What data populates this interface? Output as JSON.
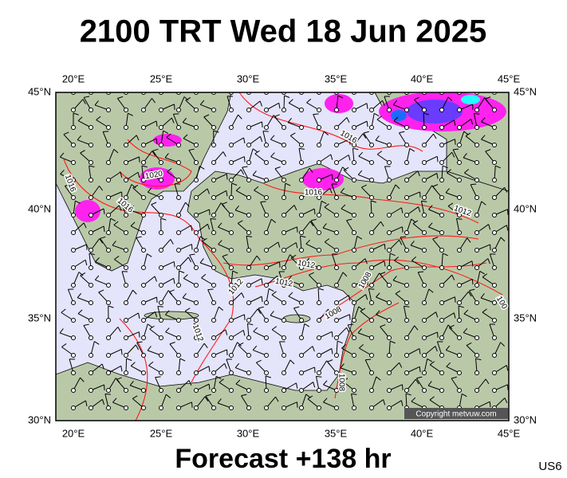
{
  "header": {
    "title": "2100 TRT Wed 18 Jun 2025"
  },
  "map": {
    "lon_labels": [
      "20°E",
      "25°E",
      "30°E",
      "35°E",
      "40°E",
      "45°E"
    ],
    "lat_labels": [
      "45°N",
      "40°N",
      "35°N",
      "30°N"
    ],
    "isobar_labels": [
      "1016",
      "1020",
      "1016",
      "1016",
      "1016",
      "1012",
      "1012",
      "1012",
      "1012",
      "1008",
      "1008",
      "1012",
      "1008",
      "100"
    ],
    "copyright": "Copyright metvuw.com"
  },
  "footer": {
    "forecast": "Forecast +138 hr",
    "code": "US6"
  }
}
